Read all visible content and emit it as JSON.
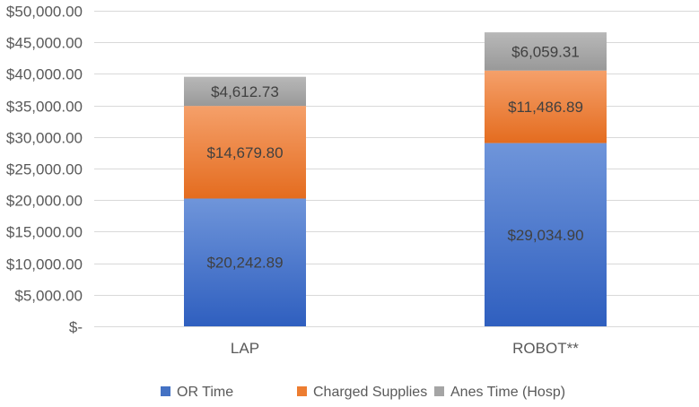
{
  "chart_data": {
    "type": "bar",
    "stacked": true,
    "title": "",
    "xlabel": "",
    "ylabel": "",
    "ylim": [
      0,
      50000
    ],
    "grid": true,
    "legend_position": "bottom",
    "categories": [
      "LAP",
      "ROBOT**"
    ],
    "y_ticks": [
      0,
      5000,
      10000,
      15000,
      20000,
      25000,
      30000,
      35000,
      40000,
      45000,
      50000
    ],
    "y_tick_labels": [
      "$-",
      "$5,000.00",
      "$10,000.00",
      "$15,000.00",
      "$20,000.00",
      "$25,000.00",
      "$30,000.00",
      "$35,000.00",
      "$40,000.00",
      "$45,000.00",
      "$50,000.00"
    ],
    "series": [
      {
        "name": "OR Time",
        "color": "#4472c4",
        "gradient_top": "#6f95da",
        "gradient_bottom": "#2f5fbf",
        "values": [
          20242.89,
          29034.9
        ],
        "data_labels": [
          "$20,242.89",
          "$29,034.90"
        ]
      },
      {
        "name": "Charged Supplies",
        "color": "#ed7d31",
        "gradient_top": "#f5a06a",
        "gradient_bottom": "#e46c1f",
        "values": [
          14679.8,
          11486.89
        ],
        "data_labels": [
          "$14,679.80",
          "$11,486.89"
        ]
      },
      {
        "name": "Anes Time (Hosp)",
        "color": "#a5a5a5",
        "gradient_top": "#b8b8b8",
        "gradient_bottom": "#999999",
        "values": [
          4612.73,
          6059.31
        ],
        "data_labels": [
          "$4,612.73",
          "$6,059.31"
        ]
      }
    ]
  }
}
